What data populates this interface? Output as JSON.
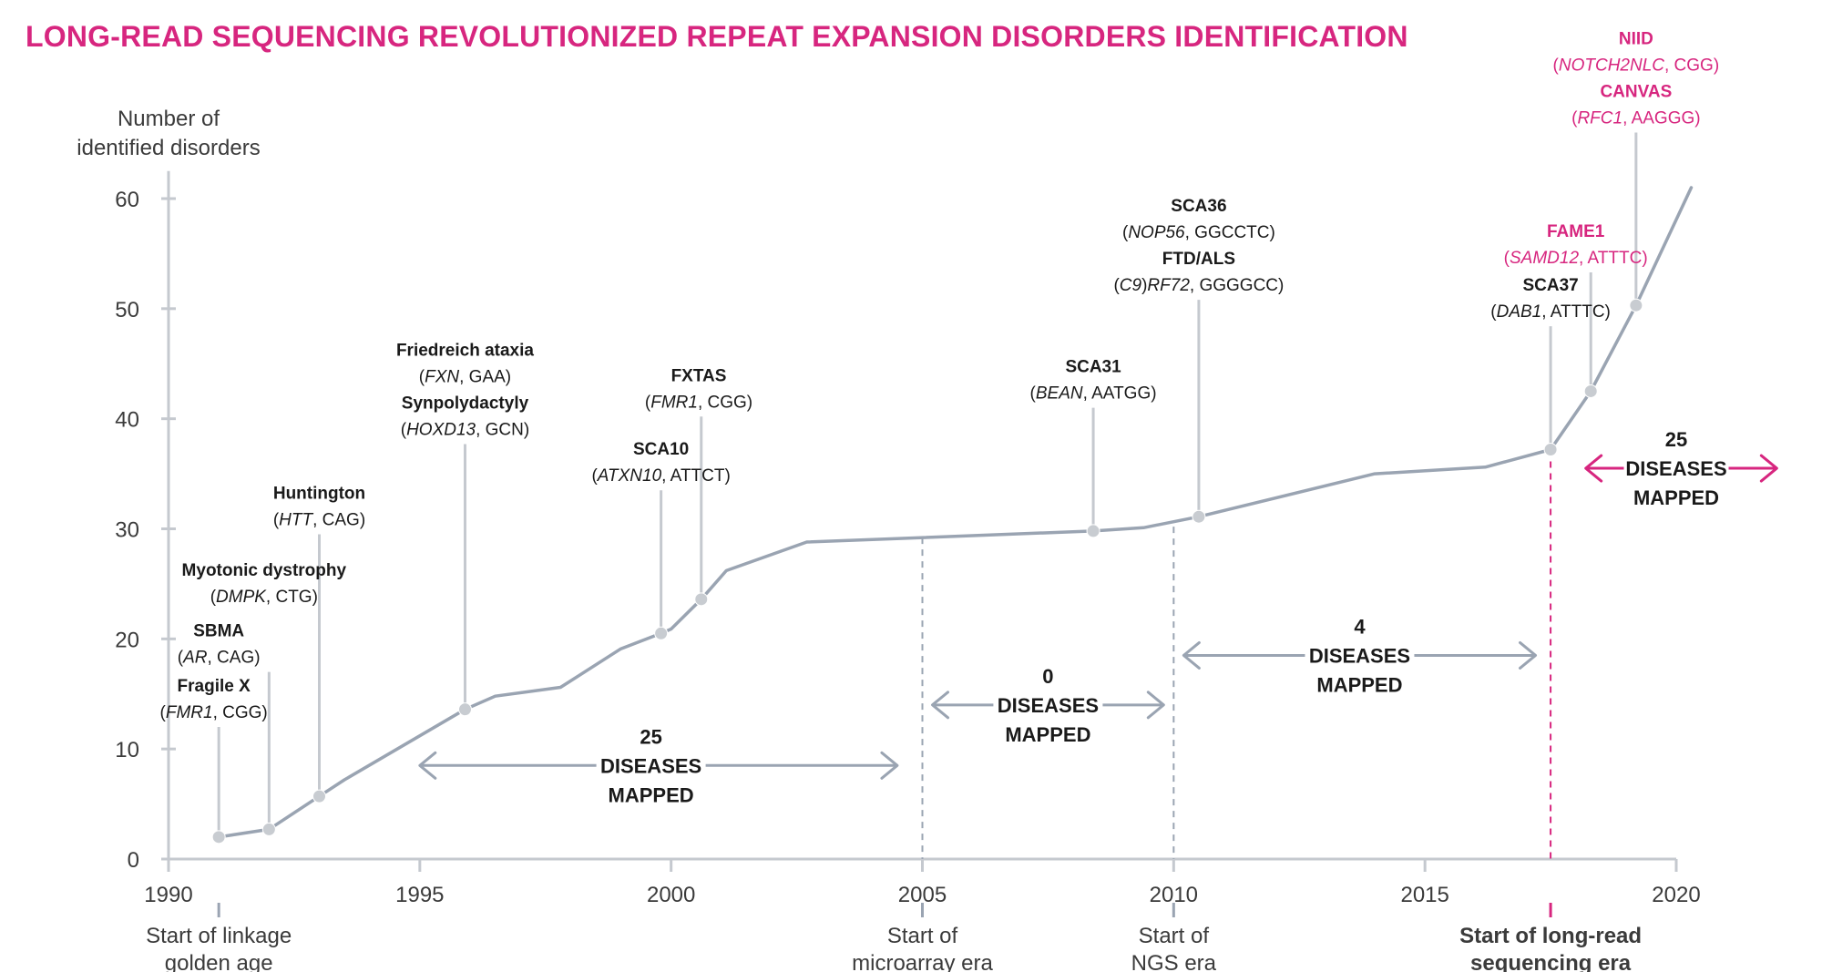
{
  "colors": {
    "accent": "#d7267f",
    "line": "#9aa4b2",
    "axis": "#c5c9cf",
    "text": "#1a1a1a",
    "muted": "#3b3b3b",
    "point": "#c8ccd1"
  },
  "chart_data": {
    "type": "line",
    "title": "LONG-READ SEQUENCING REVOLUTIONIZED REPEAT EXPANSION DISORDERS IDENTIFICATION",
    "ylabel": [
      "Number of",
      "identified disorders"
    ],
    "xlabel": "",
    "xlim": [
      1990,
      2020
    ],
    "ylim": [
      0,
      60
    ],
    "xticks": [
      1990,
      1995,
      2000,
      2005,
      2010,
      2015,
      2020
    ],
    "yticks": [
      0,
      10,
      20,
      30,
      40,
      50,
      60
    ],
    "series": [
      {
        "name": "Number of identified disorders",
        "x": [
          1991.0,
          1992.0,
          1993.0,
          1993.5,
          1995.9,
          1996.5,
          1997.8,
          1999.0,
          1999.8,
          2000.0,
          2000.6,
          2001.1,
          2002.7,
          2008.4,
          2009.4,
          2010.5,
          2014.0,
          2016.2,
          2017.5,
          2018.3,
          2019.2,
          2020.3
        ],
        "y": [
          2,
          2.7,
          5.7,
          7.2,
          13.6,
          14.8,
          15.6,
          19.1,
          20.5,
          20.9,
          23.6,
          26.2,
          28.8,
          29.8,
          30.1,
          31.1,
          35,
          35.6,
          37.2,
          42.5,
          50.3,
          61
        ]
      }
    ],
    "markers": [
      {
        "x": 1991.0,
        "y": 2
      },
      {
        "x": 1992.0,
        "y": 2.7
      },
      {
        "x": 1993.0,
        "y": 5.7
      },
      {
        "x": 1995.9,
        "y": 13.6
      },
      {
        "x": 1999.8,
        "y": 20.5
      },
      {
        "x": 2000.6,
        "y": 23.6
      },
      {
        "x": 2008.4,
        "y": 29.8
      },
      {
        "x": 2010.5,
        "y": 31.1
      },
      {
        "x": 2017.5,
        "y": 37.2
      },
      {
        "x": 2018.3,
        "y": 42.5
      },
      {
        "x": 2019.2,
        "y": 50.3
      }
    ],
    "annotations": [
      {
        "x": 1991.0,
        "y": 2,
        "top": 12,
        "label_year": 1990.9,
        "accent": false,
        "lines": [
          {
            "kind": "name",
            "parts": [
              {
                "t": "Fragile X"
              }
            ]
          },
          {
            "kind": "detail",
            "parts": [
              {
                "t": "(",
                "i": false
              },
              {
                "t": "FMR1",
                "i": true
              },
              {
                "t": ", CGG)",
                "i": false
              }
            ]
          }
        ]
      },
      {
        "x": 1992.0,
        "y": 2.7,
        "top": 17,
        "label_year": 1991.0,
        "accent": false,
        "lines": [
          {
            "kind": "name",
            "parts": [
              {
                "t": "SBMA"
              }
            ]
          },
          {
            "kind": "detail",
            "parts": [
              {
                "t": "(",
                "i": false
              },
              {
                "t": "AR",
                "i": true
              },
              {
                "t": ", CAG)",
                "i": false
              }
            ]
          }
        ]
      },
      {
        "x": 1993.0,
        "y": 5.7,
        "top": 22.5,
        "label_year": 1991.9,
        "accent": false,
        "lines": [
          {
            "kind": "name",
            "parts": [
              {
                "t": "Myotonic dystrophy"
              }
            ]
          },
          {
            "kind": "detail",
            "parts": [
              {
                "t": "(",
                "i": false
              },
              {
                "t": "DMPK",
                "i": true
              },
              {
                "t": ", CTG)",
                "i": false
              }
            ]
          }
        ]
      },
      {
        "x": 1993.0,
        "y": 5.7,
        "top": 29.5,
        "label_year": 1993.0,
        "accent": false,
        "lines": [
          {
            "kind": "name",
            "parts": [
              {
                "t": "Huntington"
              }
            ]
          },
          {
            "kind": "detail",
            "parts": [
              {
                "t": "(",
                "i": false
              },
              {
                "t": "HTT",
                "i": true
              },
              {
                "t": ", CAG)",
                "i": false
              }
            ]
          }
        ]
      },
      {
        "x": 1995.9,
        "y": 13.6,
        "top": 37.7,
        "label_year": 1995.9,
        "accent": false,
        "lines": [
          {
            "kind": "name",
            "parts": [
              {
                "t": "Friedreich ataxia"
              }
            ]
          },
          {
            "kind": "detail",
            "parts": [
              {
                "t": "(",
                "i": false
              },
              {
                "t": "FXN",
                "i": true
              },
              {
                "t": ", GAA)",
                "i": false
              }
            ]
          },
          {
            "kind": "name",
            "parts": [
              {
                "t": "Synpolydactyly"
              }
            ]
          },
          {
            "kind": "detail",
            "parts": [
              {
                "t": "(",
                "i": false
              },
              {
                "t": "HOXD13",
                "i": true
              },
              {
                "t": ", GCN)",
                "i": false
              }
            ]
          }
        ]
      },
      {
        "x": 1999.8,
        "y": 20.5,
        "top": 33.5,
        "label_year": 1999.8,
        "accent": false,
        "lines": [
          {
            "kind": "name",
            "parts": [
              {
                "t": "SCA10"
              }
            ]
          },
          {
            "kind": "detail",
            "parts": [
              {
                "t": "(",
                "i": false
              },
              {
                "t": "ATXN10",
                "i": true
              },
              {
                "t": ", ATTCT)",
                "i": false
              }
            ]
          }
        ]
      },
      {
        "x": 2000.6,
        "y": 23.6,
        "top": 40.2,
        "label_year": 2000.55,
        "accent": false,
        "lines": [
          {
            "kind": "name",
            "parts": [
              {
                "t": "FXTAS"
              }
            ]
          },
          {
            "kind": "detail",
            "parts": [
              {
                "t": "(",
                "i": false
              },
              {
                "t": "FMR1",
                "i": true
              },
              {
                "t": ", CGG)",
                "i": false
              }
            ]
          }
        ]
      },
      {
        "x": 2008.4,
        "y": 29.8,
        "top": 41,
        "label_year": 2008.4,
        "accent": false,
        "lines": [
          {
            "kind": "name",
            "parts": [
              {
                "t": "SCA31"
              }
            ]
          },
          {
            "kind": "detail",
            "parts": [
              {
                "t": "(",
                "i": false
              },
              {
                "t": "BEAN",
                "i": true
              },
              {
                "t": ", AATGG)",
                "i": false
              }
            ]
          }
        ]
      },
      {
        "x": 2010.5,
        "y": 31.1,
        "top": 50.8,
        "label_year": 2010.5,
        "accent": false,
        "lines": [
          {
            "kind": "name",
            "parts": [
              {
                "t": "SCA36"
              }
            ]
          },
          {
            "kind": "detail",
            "parts": [
              {
                "t": "(",
                "i": false
              },
              {
                "t": "NOP56",
                "i": true
              },
              {
                "t": ", GGCCTC)",
                "i": false
              }
            ]
          },
          {
            "kind": "name",
            "parts": [
              {
                "t": "FTD/ALS"
              }
            ]
          },
          {
            "kind": "detail",
            "parts": [
              {
                "t": "(",
                "i": false
              },
              {
                "t": "C9",
                "i": true
              },
              {
                "t": ")",
                "i": false
              },
              {
                "t": "RF72",
                "i": true
              },
              {
                "t": ", GGGGCC)",
                "i": false
              }
            ]
          }
        ]
      },
      {
        "x": 2017.5,
        "y": 37.2,
        "top": 48.4,
        "label_year": 2017.5,
        "accent": false,
        "lines": [
          {
            "kind": "name",
            "parts": [
              {
                "t": "SCA37"
              }
            ]
          },
          {
            "kind": "detail",
            "parts": [
              {
                "t": "(",
                "i": false
              },
              {
                "t": "DAB1",
                "i": true
              },
              {
                "t": ", ATTTC)",
                "i": false
              }
            ]
          }
        ]
      },
      {
        "x": 2018.3,
        "y": 42.5,
        "top": 53.3,
        "label_year": 2018.0,
        "accent": true,
        "lines": [
          {
            "kind": "name",
            "parts": [
              {
                "t": "FAME1"
              }
            ]
          },
          {
            "kind": "detail",
            "parts": [
              {
                "t": "(",
                "i": false
              },
              {
                "t": "SAMD12",
                "i": true
              },
              {
                "t": ", ATTTC)",
                "i": false
              }
            ]
          }
        ]
      },
      {
        "x": 2019.2,
        "y": 50.3,
        "top": 66,
        "label_year": 2019.2,
        "accent": true,
        "lines": [
          {
            "kind": "name",
            "parts": [
              {
                "t": "NIID"
              }
            ]
          },
          {
            "kind": "detail",
            "parts": [
              {
                "t": "(",
                "i": false
              },
              {
                "t": "NOTCH2NLC",
                "i": true
              },
              {
                "t": ", CGG)",
                "i": false
              }
            ]
          },
          {
            "kind": "name",
            "parts": [
              {
                "t": "CANVAS"
              }
            ]
          },
          {
            "kind": "detail",
            "parts": [
              {
                "t": "(",
                "i": false
              },
              {
                "t": "RFC1",
                "i": true
              },
              {
                "t": ", AAGGG)",
                "i": false
              }
            ]
          }
        ]
      }
    ],
    "eras": [
      {
        "x": 1991.0,
        "lines": [
          "Start of linkage",
          "golden age"
        ],
        "accent": false,
        "dashed": false
      },
      {
        "x": 2005.0,
        "lines": [
          "Start of",
          "microarray era"
        ],
        "accent": false,
        "dashed": true
      },
      {
        "x": 2010.0,
        "lines": [
          "Start of",
          "NGS era"
        ],
        "accent": false,
        "dashed": true
      },
      {
        "x": 2017.5,
        "lines": [
          "Start of long-read",
          "sequencing era"
        ],
        "accent": true,
        "dashed": true
      }
    ],
    "spans": [
      {
        "x1": 1995.0,
        "x2": 2004.5,
        "y": 8.5,
        "text_x": 1999.6,
        "lines": [
          "25",
          "DISEASES",
          "MAPPED"
        ],
        "accent": false
      },
      {
        "x1": 2005.2,
        "x2": 2009.8,
        "y": 14,
        "text_x": 2007.5,
        "lines": [
          "0",
          "DISEASES",
          "MAPPED"
        ],
        "accent": false
      },
      {
        "x1": 2010.2,
        "x2": 2017.2,
        "y": 18.5,
        "text_x": 2013.7,
        "lines": [
          "4",
          "DISEASES",
          "MAPPED"
        ],
        "accent": false
      },
      {
        "x1": 2018.2,
        "x2": 2022.0,
        "y": 35.5,
        "text_x": 2020.0,
        "lines": [
          "25",
          "DISEASES",
          "MAPPED"
        ],
        "accent": true
      }
    ]
  }
}
